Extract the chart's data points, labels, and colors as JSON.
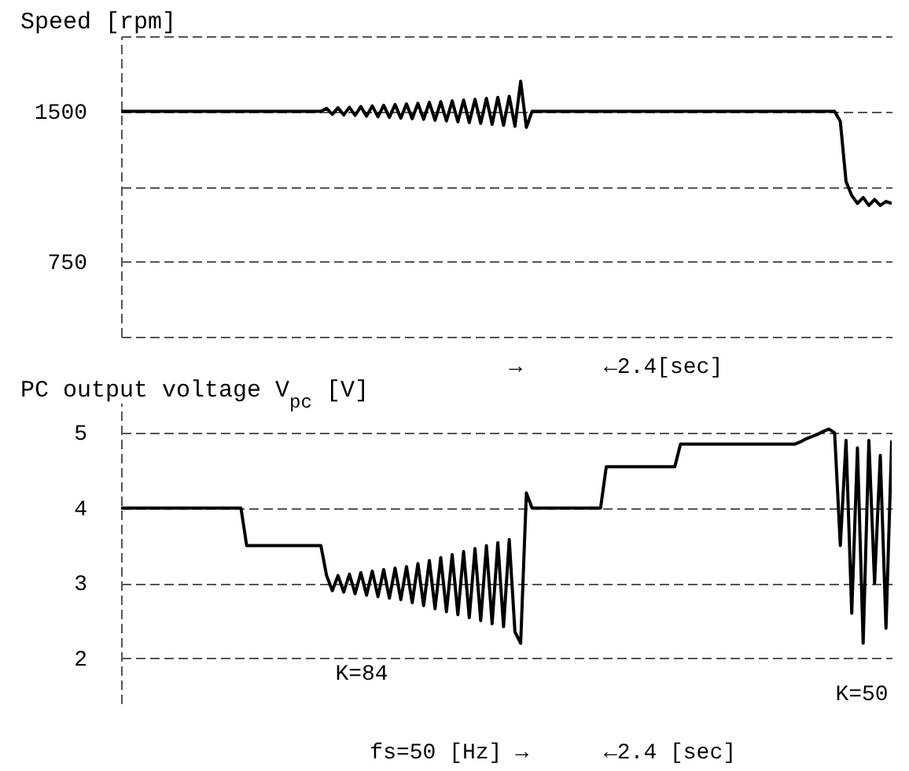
{
  "chart_data": [
    {
      "type": "line",
      "title": "Speed [rpm]",
      "categories": [
        null,
        null,
        null,
        null,
        null,
        null,
        null,
        null,
        null,
        null,
        null,
        null,
        null,
        null,
        null,
        null,
        null,
        null,
        null,
        null,
        null,
        null,
        null,
        null,
        null,
        null,
        null,
        null,
        null,
        null,
        null,
        null,
        null,
        null,
        null,
        null,
        null,
        null,
        null,
        null,
        null,
        null,
        null,
        null,
        null,
        null,
        null,
        null,
        null,
        null,
        null,
        null,
        null,
        null,
        null,
        null,
        null,
        null,
        null,
        null,
        null,
        null,
        null,
        null,
        null,
        null,
        null,
        null,
        null,
        null,
        null,
        null,
        null,
        null,
        null,
        null,
        null,
        null,
        null,
        null,
        null,
        null,
        null,
        null,
        null,
        null,
        null,
        null,
        null,
        null,
        null,
        null,
        null,
        null,
        null,
        null,
        null,
        null,
        null,
        null,
        null,
        null,
        null,
        null,
        null,
        null,
        null,
        null,
        null,
        null,
        null,
        null,
        null,
        null,
        null,
        null,
        null,
        null,
        null,
        null,
        null,
        null,
        null,
        null,
        null,
        null,
        null,
        null,
        null,
        null,
        null,
        null,
        null,
        null,
        null,
        null
      ],
      "values": [
        1500,
        1500,
        1500,
        1500,
        1500,
        1500,
        1500,
        1500,
        1500,
        1500,
        1500,
        1500,
        1500,
        1500,
        1500,
        1500,
        1500,
        1500,
        1500,
        1500,
        1500,
        1500,
        1500,
        1500,
        1500,
        1500,
        1500,
        1500,
        1500,
        1500,
        1500,
        1500,
        1500,
        1500,
        1500,
        1500,
        1515,
        1485,
        1518,
        1482,
        1520,
        1480,
        1524,
        1476,
        1527,
        1473,
        1530,
        1470,
        1534,
        1466,
        1537,
        1463,
        1540,
        1460,
        1545,
        1455,
        1548,
        1452,
        1552,
        1448,
        1556,
        1444,
        1560,
        1440,
        1565,
        1435,
        1570,
        1430,
        1575,
        1425,
        1650,
        1420,
        1500,
        1500,
        1500,
        1500,
        1500,
        1500,
        1500,
        1500,
        1500,
        1500,
        1500,
        1500,
        1500,
        1500,
        1500,
        1500,
        1500,
        1500,
        1500,
        1500,
        1500,
        1500,
        1500,
        1500,
        1500,
        1500,
        1500,
        1500,
        1500,
        1500,
        1500,
        1500,
        1500,
        1500,
        1500,
        1500,
        1500,
        1500,
        1500,
        1500,
        1500,
        1500,
        1500,
        1500,
        1500,
        1500,
        1500,
        1500,
        1500,
        1500,
        1500,
        1500,
        1500,
        1500,
        1450,
        1150,
        1080,
        1040,
        1070,
        1030,
        1060,
        1030,
        1050,
        1040
      ],
      "color": "#000000",
      "ylim": [
        375,
        1875
      ],
      "yticks": [
        {
          "value": 375,
          "label": null
        },
        750,
        {
          "value": 1125,
          "label": null
        },
        1500,
        {
          "value": 1875,
          "label": null
        }
      ],
      "grid": "y",
      "tick_labels": "y",
      "annotations": [
        "→",
        "←2.4[sec]"
      ]
    },
    {
      "type": "line",
      "title": "PC output voltage V$_{pc}$ [V]",
      "categories": [
        null,
        null,
        null,
        null,
        null,
        null,
        null,
        null,
        null,
        null,
        null,
        null,
        null,
        null,
        null,
        null,
        null,
        null,
        null,
        null,
        null,
        null,
        null,
        null,
        null,
        null,
        null,
        null,
        null,
        null,
        null,
        null,
        null,
        null,
        null,
        null,
        null,
        null,
        null,
        null,
        null,
        null,
        null,
        null,
        null,
        null,
        null,
        null,
        null,
        null,
        null,
        null,
        null,
        null,
        null,
        null,
        null,
        null,
        null,
        null,
        null,
        null,
        null,
        null,
        null,
        null,
        null,
        null,
        null,
        null,
        null,
        null,
        null,
        null,
        null,
        null,
        null,
        null,
        null,
        null,
        null,
        null,
        null,
        null,
        null,
        null,
        null,
        null,
        null,
        null,
        null,
        null,
        null,
        null,
        null,
        null,
        null,
        null,
        null,
        null,
        null,
        null,
        null,
        null,
        null,
        null,
        null,
        null,
        null,
        null,
        null,
        null,
        null,
        null,
        null,
        null,
        null,
        null,
        null,
        null,
        null,
        null,
        null,
        null,
        null,
        null,
        null,
        null,
        null,
        null,
        null,
        null,
        null,
        null,
        null,
        null
      ],
      "values": [
        4.0,
        4.0,
        4.0,
        4.0,
        4.0,
        4.0,
        4.0,
        4.0,
        4.0,
        4.0,
        4.0,
        4.0,
        4.0,
        4.0,
        4.0,
        4.0,
        4.0,
        4.0,
        4.0,
        4.0,
        4.0,
        4.0,
        3.5,
        3.5,
        3.5,
        3.5,
        3.5,
        3.5,
        3.5,
        3.5,
        3.5,
        3.5,
        3.5,
        3.5,
        3.5,
        3.5,
        3.1,
        2.9,
        3.1,
        2.88,
        3.12,
        2.86,
        3.14,
        2.84,
        3.16,
        2.82,
        3.18,
        2.8,
        3.2,
        2.78,
        3.22,
        2.74,
        3.26,
        2.7,
        3.3,
        2.66,
        3.34,
        2.62,
        3.38,
        2.58,
        3.42,
        2.54,
        3.46,
        2.5,
        3.5,
        2.46,
        3.54,
        2.42,
        3.58,
        2.35,
        2.2,
        4.2,
        4.0,
        4.0,
        4.0,
        4.0,
        4.0,
        4.0,
        4.0,
        4.0,
        4.0,
        4.0,
        4.0,
        4.0,
        4.0,
        4.55,
        4.55,
        4.55,
        4.55,
        4.55,
        4.55,
        4.55,
        4.55,
        4.55,
        4.55,
        4.55,
        4.55,
        4.55,
        4.85,
        4.85,
        4.85,
        4.85,
        4.85,
        4.85,
        4.85,
        4.85,
        4.85,
        4.85,
        4.85,
        4.85,
        4.85,
        4.85,
        4.85,
        4.85,
        4.85,
        4.85,
        4.85,
        4.85,
        4.85,
        4.88,
        4.92,
        4.95,
        4.98,
        5.02,
        5.05,
        5.0,
        3.5,
        4.9,
        2.6,
        4.8,
        2.2,
        4.9,
        3.0,
        4.7,
        2.4,
        4.9
      ],
      "color": "#000000",
      "ylim": [
        1.4,
        5.4
      ],
      "yticks": [
        2,
        3,
        4,
        5
      ],
      "grid": "y",
      "tick_labels": "y",
      "annotations": [
        "K=84",
        "K=50",
        "fs=50 [Hz] →",
        "←2.4 [sec]"
      ]
    }
  ]
}
